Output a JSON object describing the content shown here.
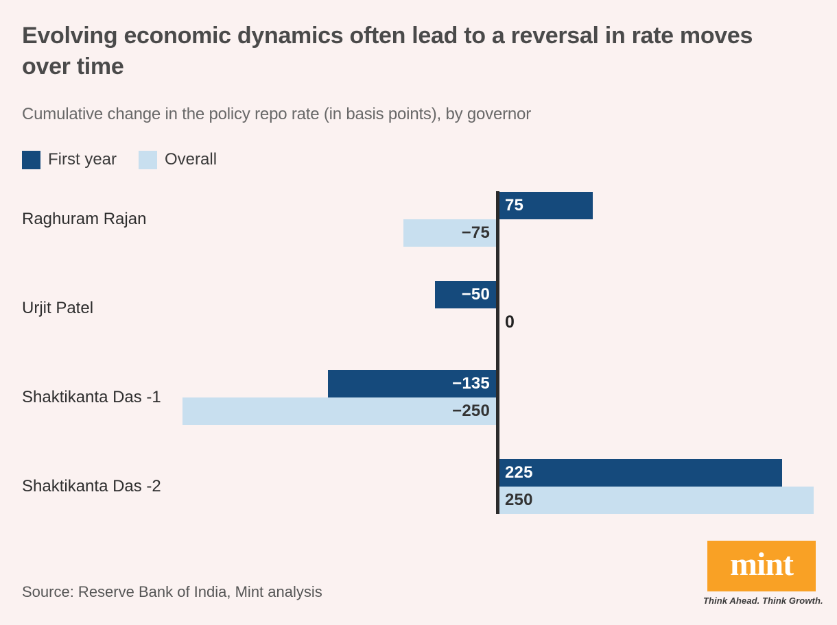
{
  "header": {
    "title": "Evolving economic dynamics often lead to a reversal in rate moves over time",
    "subtitle": "Cumulative change in the policy repo rate (in basis points), by governor"
  },
  "legend": [
    {
      "label": "First year",
      "color": "#154a7c"
    },
    {
      "label": "Overall",
      "color": "#c8dfef"
    }
  ],
  "chart_data": {
    "type": "bar",
    "orientation": "horizontal",
    "title": "Evolving economic dynamics often lead to a reversal in rate moves over time",
    "subtitle": "Cumulative change in the policy repo rate (in basis points), by governor",
    "unit": "basis points",
    "categories": [
      "Raghuram Rajan",
      "Urjit Patel",
      "Shaktikanta Das -1",
      "Shaktikanta Das -2"
    ],
    "series": [
      {
        "name": "First year",
        "values": [
          75,
          -50,
          -135,
          225
        ]
      },
      {
        "name": "Overall",
        "values": [
          -75,
          0,
          -250,
          250
        ]
      }
    ],
    "value_labels": [
      [
        "75",
        "−50",
        "−135",
        "225"
      ],
      [
        "−75",
        "0",
        "−250",
        "250"
      ]
    ],
    "xlim": [
      -250,
      250
    ],
    "grid": false,
    "zero_baseline_line": true,
    "legend_position": "top-left"
  },
  "footer": {
    "source": "Source: Reserve Bank of India, Mint analysis"
  },
  "logo": {
    "text": "mint",
    "tagline": "Think Ahead. Think Growth.",
    "color": "#f9a125"
  },
  "colors": {
    "background": "#fbf2f1",
    "first_year_bar": "#154a7c",
    "overall_bar": "#c8dfef",
    "axis_line": "#2b2b2b",
    "title_text": "#4a4a4a",
    "subtitle_text": "#686868",
    "category_text": "#2d2d2d",
    "source_text": "#555555",
    "logo_orange": "#f9a125",
    "label_on_dark": "#ffffff",
    "label_on_light": "#333333"
  }
}
